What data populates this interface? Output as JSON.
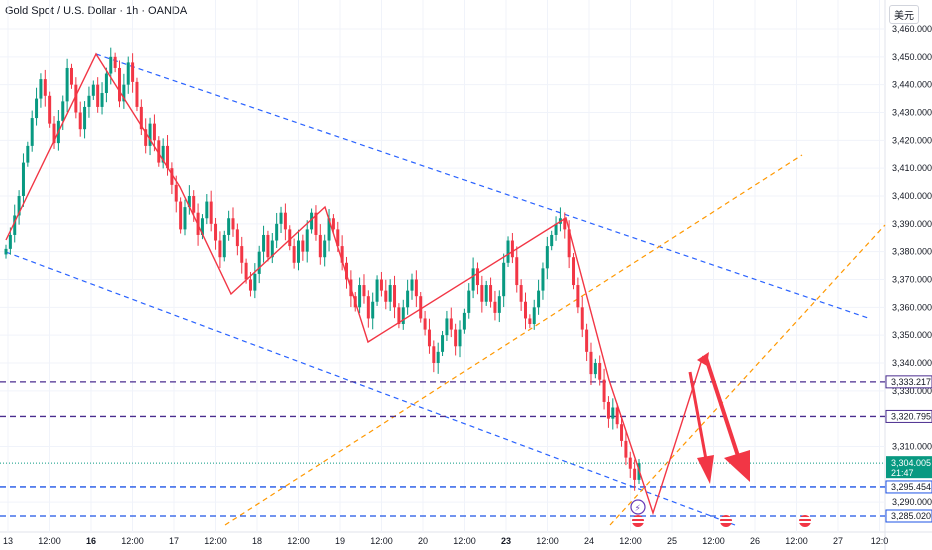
{
  "header": {
    "symbol_title": "Gold Spot / U.S. Dollar · 1h · OANDA",
    "currency_label": "美元"
  },
  "chart_data": {
    "type": "candlestick",
    "ylim": [
      3280,
      3465
    ],
    "y_ticks": [
      {
        "value": 3460,
        "label": "3,460.000"
      },
      {
        "value": 3450,
        "label": "3,450.000"
      },
      {
        "value": 3440,
        "label": "3,440.000"
      },
      {
        "value": 3430,
        "label": "3,430.000"
      },
      {
        "value": 3420,
        "label": "3,420.000"
      },
      {
        "value": 3410,
        "label": "3,410.000"
      },
      {
        "value": 3400,
        "label": "3,400.000"
      },
      {
        "value": 3390,
        "label": "3,390.000"
      },
      {
        "value": 3380,
        "label": "3,380.000"
      },
      {
        "value": 3370,
        "label": "3,370.000"
      },
      {
        "value": 3360,
        "label": "3,360.000"
      },
      {
        "value": 3350,
        "label": "3,350.000"
      },
      {
        "value": 3340,
        "label": "3,340.000"
      },
      {
        "value": 3330,
        "label": "3,330.000"
      },
      {
        "value": 3310,
        "label": "3,310.000"
      },
      {
        "value": 3290,
        "label": "3,290.000"
      }
    ],
    "x_ticks": [
      {
        "label": "13",
        "bold": false
      },
      {
        "label": "12:00",
        "bold": false
      },
      {
        "label": "16",
        "bold": true
      },
      {
        "label": "12:00",
        "bold": false
      },
      {
        "label": "17",
        "bold": false
      },
      {
        "label": "12:00",
        "bold": false
      },
      {
        "label": "18",
        "bold": false
      },
      {
        "label": "12:00",
        "bold": false
      },
      {
        "label": "19",
        "bold": false
      },
      {
        "label": "12:00",
        "bold": false
      },
      {
        "label": "20",
        "bold": false
      },
      {
        "label": "12:00",
        "bold": false
      },
      {
        "label": "23",
        "bold": true
      },
      {
        "label": "12:00",
        "bold": false
      },
      {
        "label": "24",
        "bold": false
      },
      {
        "label": "12:00",
        "bold": false
      },
      {
        "label": "25",
        "bold": false
      },
      {
        "label": "12:00",
        "bold": false
      },
      {
        "label": "26",
        "bold": false
      },
      {
        "label": "12:00",
        "bold": false
      },
      {
        "label": "27",
        "bold": false
      },
      {
        "label": "12:0",
        "bold": false
      }
    ],
    "price_levels": [
      {
        "value": 3333.217,
        "label": "3,333.217",
        "color": "#4a2c8f"
      },
      {
        "value": 3320.795,
        "label": "3,320.795",
        "color": "#4a2c8f"
      },
      {
        "value": 3295.454,
        "label": "3,295.454",
        "color": "#1e53e5"
      },
      {
        "value": 3285.02,
        "label": "3,285.020",
        "color": "#1e53e5"
      }
    ],
    "current_price": {
      "value": 3304.005,
      "label": "3,304.005",
      "countdown": "21:47",
      "color": "#089981"
    },
    "candle_path": [
      3381,
      3386,
      3393,
      3400,
      3412,
      3418,
      3428,
      3435,
      3442,
      3436,
      3426,
      3419,
      3427,
      3434,
      3446,
      3440,
      3430,
      3424,
      3432,
      3436,
      3440,
      3432,
      3437,
      3444,
      3450,
      3446,
      3434,
      3440,
      3448,
      3441,
      3432,
      3424,
      3418,
      3426,
      3420,
      3412,
      3418,
      3410,
      3404,
      3398,
      3388,
      3396,
      3400,
      3394,
      3386,
      3392,
      3398,
      3390,
      3384,
      3378,
      3386,
      3392,
      3388,
      3382,
      3376,
      3370,
      3366,
      3372,
      3380,
      3386,
      3378,
      3384,
      3390,
      3394,
      3388,
      3382,
      3376,
      3384,
      3380,
      3388,
      3394,
      3386,
      3378,
      3384,
      3392,
      3388,
      3382,
      3376,
      3370,
      3364,
      3360,
      3368,
      3364,
      3356,
      3362,
      3370,
      3366,
      3362,
      3368,
      3360,
      3354,
      3360,
      3366,
      3370,
      3364,
      3356,
      3352,
      3346,
      3340,
      3344,
      3350,
      3356,
      3352,
      3346,
      3352,
      3358,
      3366,
      3374,
      3368,
      3362,
      3368,
      3362,
      3358,
      3364,
      3376,
      3384,
      3378,
      3368,
      3362,
      3356,
      3354,
      3360,
      3366,
      3374,
      3382,
      3386,
      3390,
      3392,
      3388,
      3378,
      3368,
      3360,
      3352,
      3344,
      3336,
      3340,
      3334,
      3326,
      3320,
      3324,
      3318,
      3312,
      3306,
      3302,
      3298,
      3304
    ]
  }
}
